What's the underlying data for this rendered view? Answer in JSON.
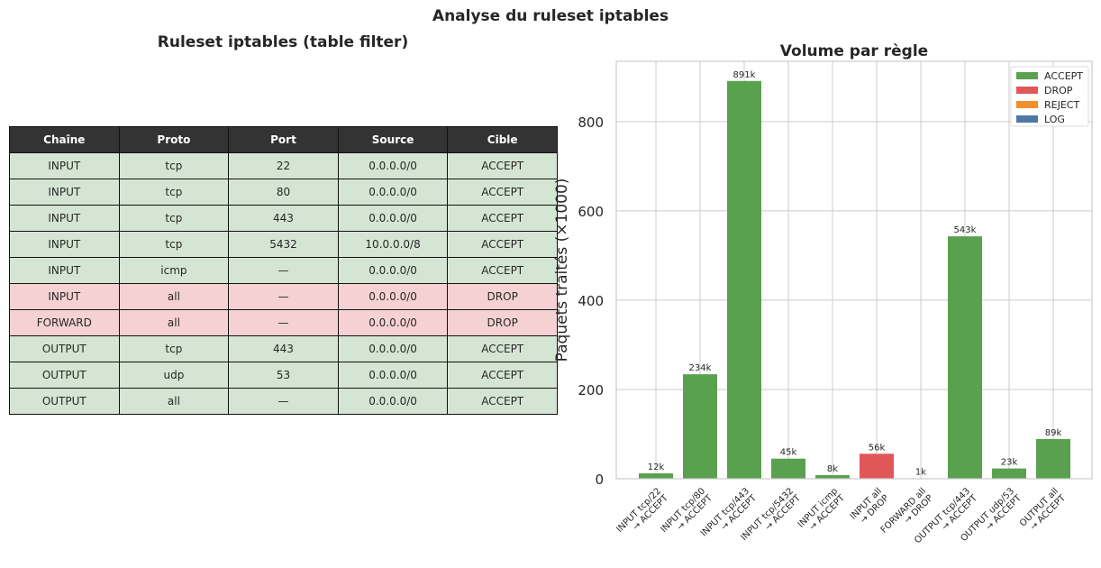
{
  "suptitle": "Analyse du ruleset iptables",
  "table": {
    "title": "Ruleset iptables (table filter)",
    "headers": [
      "Chaîne",
      "Proto",
      "Port",
      "Source",
      "Cible"
    ],
    "rows": [
      [
        "INPUT",
        "tcp",
        "22",
        "0.0.0.0/0",
        "ACCEPT"
      ],
      [
        "INPUT",
        "tcp",
        "80",
        "0.0.0.0/0",
        "ACCEPT"
      ],
      [
        "INPUT",
        "tcp",
        "443",
        "0.0.0.0/0",
        "ACCEPT"
      ],
      [
        "INPUT",
        "tcp",
        "5432",
        "10.0.0.0/8",
        "ACCEPT"
      ],
      [
        "INPUT",
        "icmp",
        "—",
        "0.0.0.0/0",
        "ACCEPT"
      ],
      [
        "INPUT",
        "all",
        "—",
        "0.0.0.0/0",
        "DROP"
      ],
      [
        "FORWARD",
        "all",
        "—",
        "0.0.0.0/0",
        "DROP"
      ],
      [
        "OUTPUT",
        "tcp",
        "443",
        "0.0.0.0/0",
        "ACCEPT"
      ],
      [
        "OUTPUT",
        "udp",
        "53",
        "0.0.0.0/0",
        "ACCEPT"
      ],
      [
        "OUTPUT",
        "all",
        "—",
        "0.0.0.0/0",
        "ACCEPT"
      ]
    ]
  },
  "colors": {
    "ACCEPT": "#59a14f",
    "DROP": "#e15759",
    "REJECT": "#f28e2b",
    "LOG": "#4e79a7"
  },
  "chart_data": {
    "type": "bar",
    "title": "Volume par règle",
    "xlabel": "",
    "ylabel": "Paquets traités (×1000)",
    "ylim": [
      0,
      935
    ],
    "yticks": [
      0,
      200,
      400,
      600,
      800
    ],
    "grid": true,
    "legend_position": "top-right",
    "legend": [
      "ACCEPT",
      "DROP",
      "REJECT",
      "LOG"
    ],
    "categories": [
      [
        "INPUT tcp/22",
        "→ ACCEPT"
      ],
      [
        "INPUT tcp/80",
        "→ ACCEPT"
      ],
      [
        "INPUT tcp/443",
        "→ ACCEPT"
      ],
      [
        "INPUT tcp/5432",
        "→ ACCEPT"
      ],
      [
        "INPUT icmp",
        "→ ACCEPT"
      ],
      [
        "INPUT all",
        "→ DROP"
      ],
      [
        "FORWARD all",
        "→ DROP"
      ],
      [
        "OUTPUT tcp/443",
        "→ ACCEPT"
      ],
      [
        "OUTPUT udp/53",
        "→ ACCEPT"
      ],
      [
        "OUTPUT all",
        "→ ACCEPT"
      ]
    ],
    "values": [
      12,
      234,
      891,
      45,
      8,
      56,
      1,
      543,
      23,
      89
    ],
    "targets": [
      "ACCEPT",
      "ACCEPT",
      "ACCEPT",
      "ACCEPT",
      "ACCEPT",
      "DROP",
      "DROP",
      "ACCEPT",
      "ACCEPT",
      "ACCEPT"
    ],
    "value_labels": [
      "12k",
      "234k",
      "891k",
      "45k",
      "8k",
      "56k",
      "1k",
      "543k",
      "23k",
      "89k"
    ]
  }
}
